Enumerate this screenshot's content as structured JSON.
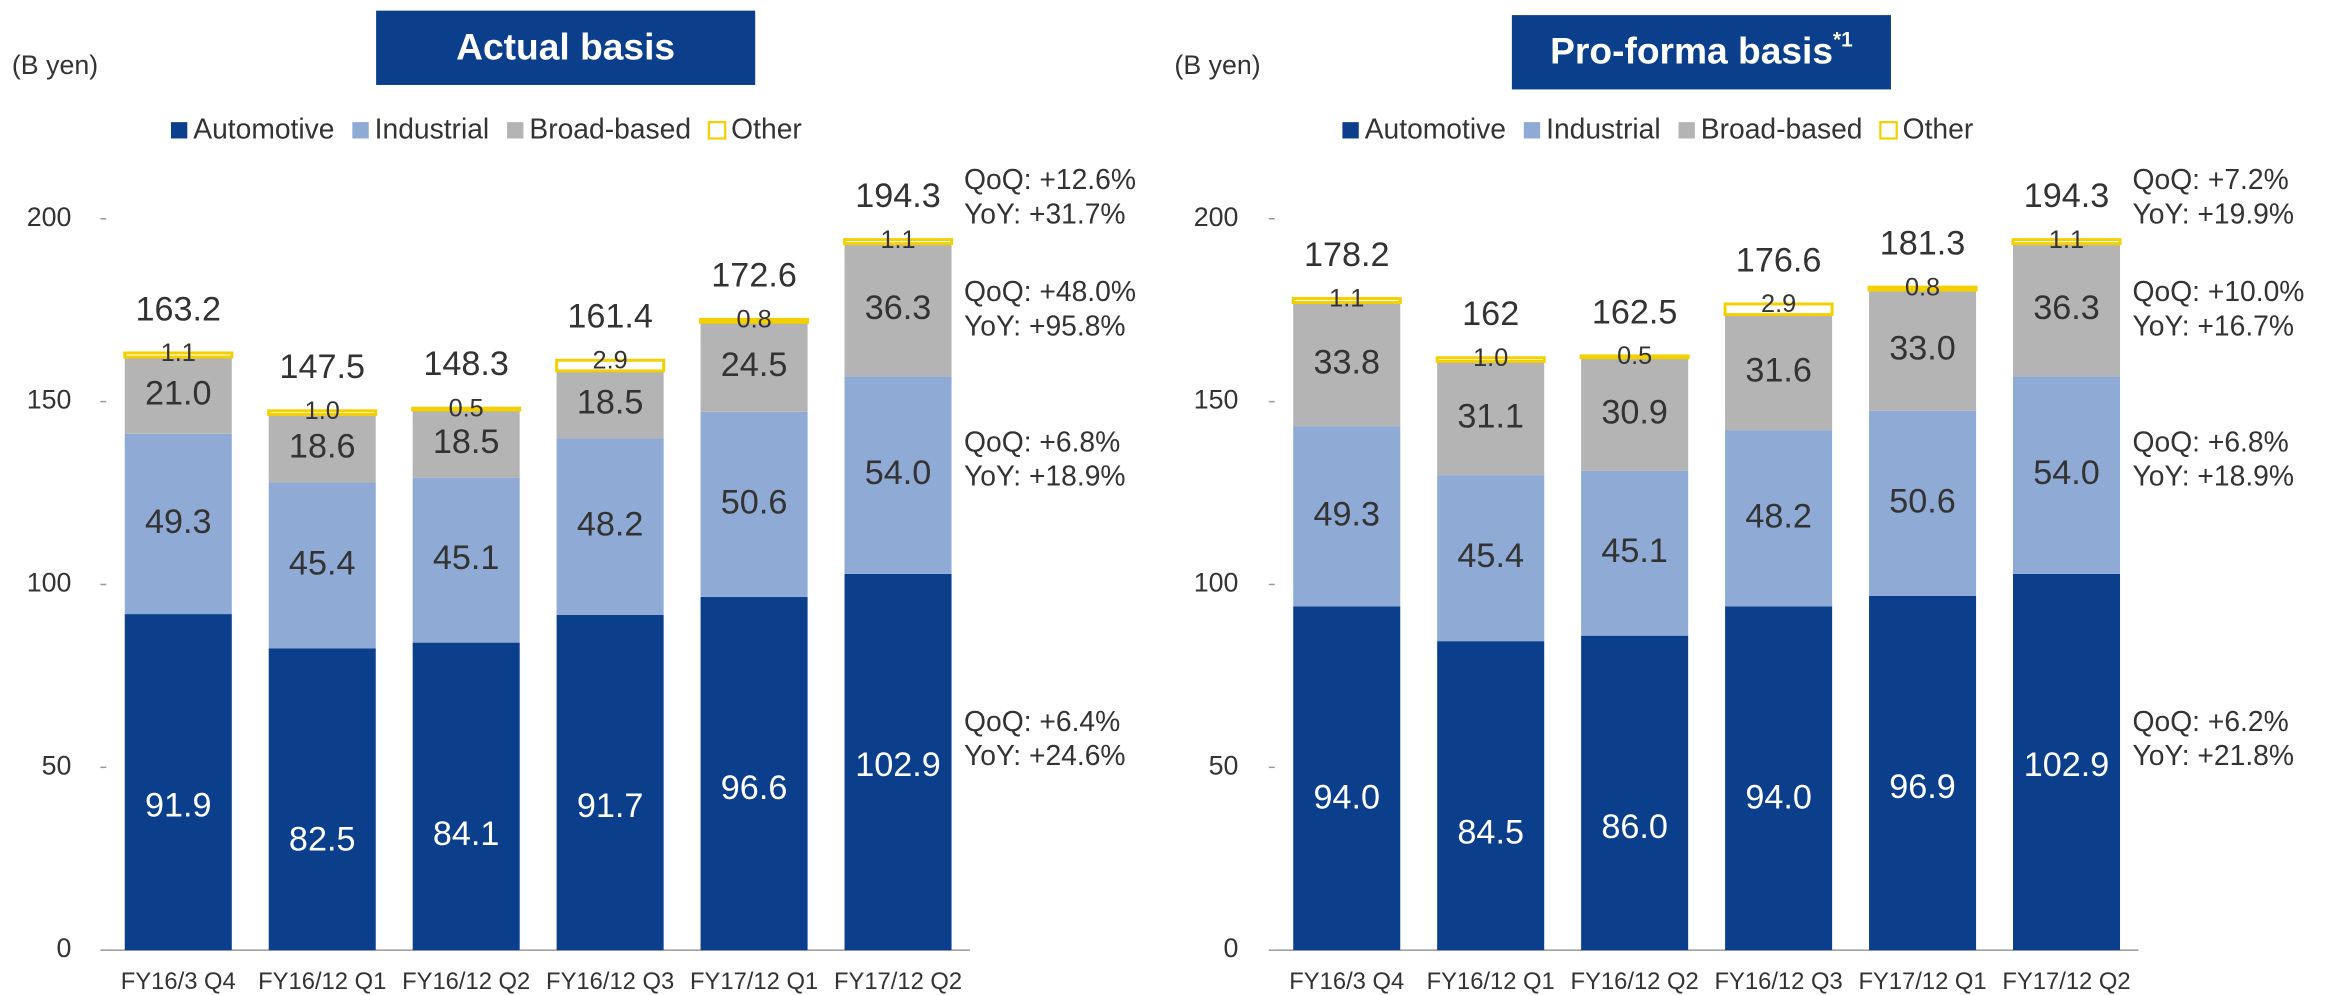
{
  "chart_data": [
    {
      "type": "stacked_bar",
      "title": "Actual basis",
      "unit_label": "(B yen)",
      "categories": [
        "FY16/3 Q4",
        "FY16/12 Q1",
        "FY16/12 Q2",
        "FY16/12 Q3",
        "FY17/12 Q1",
        "FY17/12 Q2"
      ],
      "series": [
        {
          "name": "Automotive",
          "color": "#0b3f8c",
          "values": [
            91.9,
            82.5,
            84.1,
            91.7,
            96.6,
            102.9
          ]
        },
        {
          "name": "Industrial",
          "color": "#8eaad5",
          "values": [
            49.3,
            45.4,
            45.1,
            48.2,
            50.6,
            54.0
          ],
          "value_labels": [
            "49.3",
            "45.4",
            "45.1",
            "48.2",
            "50.6",
            "54.0"
          ]
        },
        {
          "name": "Broad-based",
          "color": "#b4b4b4",
          "values": [
            21.0,
            18.6,
            18.5,
            18.5,
            24.5,
            36.3
          ],
          "value_labels": [
            "21.0",
            "18.6",
            "18.5",
            "18.5",
            "24.5",
            "36.3"
          ]
        },
        {
          "name": "Other",
          "color": "#f5d000",
          "values": [
            1.1,
            1.0,
            0.5,
            2.9,
            0.8,
            1.1
          ],
          "value_labels": [
            "1.1",
            "1.0",
            "0.5",
            "2.9",
            "0.8",
            "1.1"
          ]
        }
      ],
      "totals": [
        163.2,
        147.5,
        148.3,
        161.4,
        172.6,
        194.3
      ],
      "annotations": [
        [
          "QoQ: +6.4%",
          "YoY: +24.6%"
        ],
        [
          "QoQ: +6.8%",
          "YoY: +18.9%"
        ],
        [
          "QoQ: +48.0%",
          "YoY: +95.8%"
        ],
        [
          "QoQ: +12.6%",
          "YoY: +31.7%"
        ]
      ],
      "ylim": [
        0,
        200
      ],
      "yticks": [
        0,
        50,
        100,
        150,
        200
      ]
    },
    {
      "type": "stacked_bar",
      "title": "Pro-forma basis",
      "title_note": "*1",
      "unit_label": "(B yen)",
      "categories": [
        "FY16/3 Q4",
        "FY16/12 Q1",
        "FY16/12 Q2",
        "FY16/12 Q3",
        "FY17/12 Q1",
        "FY17/12 Q2"
      ],
      "series": [
        {
          "name": "Automotive",
          "color": "#0b3f8c",
          "values": [
            94.0,
            84.5,
            86.0,
            94.0,
            96.9,
            102.9
          ],
          "value_labels": [
            "94.0",
            "84.5",
            "86.0",
            "94.0",
            "96.9",
            "102.9"
          ]
        },
        {
          "name": "Industrial",
          "color": "#8eaad5",
          "values": [
            49.3,
            45.4,
            45.1,
            48.2,
            50.6,
            54.0
          ],
          "value_labels": [
            "49.3",
            "45.4",
            "45.1",
            "48.2",
            "50.6",
            "54.0"
          ]
        },
        {
          "name": "Broad-based",
          "color": "#b4b4b4",
          "values": [
            33.8,
            31.1,
            30.9,
            31.6,
            33.0,
            36.3
          ],
          "value_labels": [
            "33.8",
            "31.1",
            "30.9",
            "31.6",
            "33.0",
            "36.3"
          ]
        },
        {
          "name": "Other",
          "color": "#f5d000",
          "values": [
            1.1,
            1.0,
            0.5,
            2.9,
            0.8,
            1.1
          ],
          "value_labels": [
            "1.1",
            "1.0",
            "0.5",
            "2.9",
            "0.8",
            "1.1"
          ]
        }
      ],
      "totals": [
        178.2,
        162.0,
        162.5,
        176.6,
        181.3,
        194.3
      ],
      "annotations": [
        [
          "QoQ: +6.2%",
          "YoY: +21.8%"
        ],
        [
          "QoQ: +6.8%",
          "YoY: +18.9%"
        ],
        [
          "QoQ: +10.0%",
          "YoY: +16.7%"
        ],
        [
          "QoQ: +7.2%",
          "YoY: +19.9%"
        ]
      ],
      "ylim": [
        0,
        200
      ],
      "yticks": [
        0,
        50,
        100,
        150,
        200
      ]
    }
  ]
}
